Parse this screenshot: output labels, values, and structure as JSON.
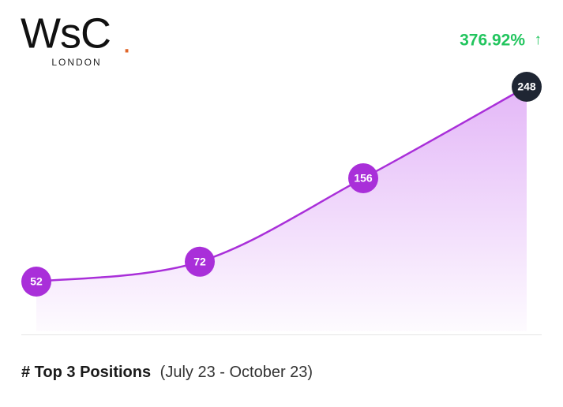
{
  "logo": {
    "text": "WsC",
    "dot": ".",
    "subtitle": "LONDON"
  },
  "chart_data": {
    "type": "line",
    "change": "376.92%",
    "change_arrow": "↑",
    "change_color": "#22c55e",
    "values": [
      52,
      72,
      156,
      248
    ],
    "color": "#a92fd9",
    "last_point_color": "#1f2633",
    "title": "# Top 3 Positions",
    "subtitle": "(July 23 - October 23)"
  }
}
